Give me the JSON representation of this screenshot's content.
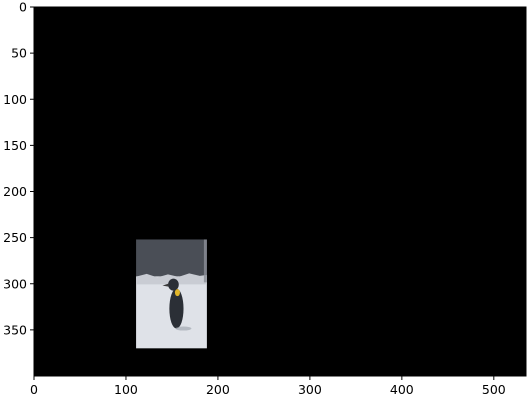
{
  "chart_data": {
    "type": "image",
    "title": "",
    "xlabel": "",
    "ylabel": "",
    "xlim": [
      0,
      535
    ],
    "ylim": [
      400,
      0
    ],
    "x_ticks": [
      0,
      100,
      200,
      300,
      400,
      500
    ],
    "y_ticks": [
      0,
      50,
      100,
      150,
      200,
      250,
      300,
      350
    ],
    "background_color": "#000000",
    "image_content": "penguin-photo",
    "image_extent": {
      "x": [
        111,
        188
      ],
      "y": [
        252,
        370
      ]
    },
    "image_split_y": 292,
    "colors": {
      "sky": "#4a4e56",
      "snow": "#dfe2e8",
      "penguin_body": "#2b2f36",
      "penguin_accent": "#e2b62a"
    }
  }
}
